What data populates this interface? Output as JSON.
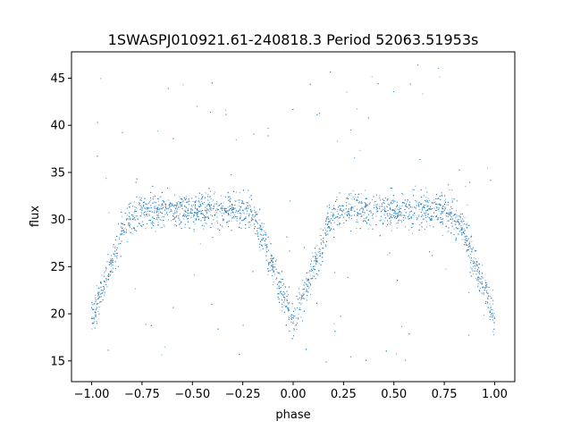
{
  "chart_data": {
    "type": "scatter",
    "title": "1SWASPJ010921.61-240818.3 Period 52063.51953s",
    "xlabel": "phase",
    "ylabel": "flux",
    "xlim": [
      -1.1,
      1.1
    ],
    "ylim": [
      12.8,
      47.8
    ],
    "x_ticks": [
      -1.0,
      -0.75,
      -0.5,
      -0.25,
      0.0,
      0.25,
      0.5,
      0.75,
      1.0
    ],
    "x_tick_labels": [
      "−1.00",
      "−0.75",
      "−0.50",
      "−0.25",
      "0.00",
      "0.25",
      "0.50",
      "0.75",
      "1.00"
    ],
    "y_ticks": [
      15,
      20,
      25,
      30,
      35,
      40,
      45
    ],
    "y_tick_labels": [
      "15",
      "20",
      "25",
      "30",
      "35",
      "40",
      "45"
    ],
    "grid": false,
    "marker_color": "#1f77b4",
    "series": [
      {
        "description_points": "phase-folded light curve, x in [-1, 1]",
        "x": [
          -1.0,
          -0.95,
          -0.9,
          -0.85,
          -0.8,
          -0.75,
          -0.5,
          -0.25,
          -0.2,
          -0.15,
          -0.1,
          -0.05,
          0.0,
          0.05,
          0.1,
          0.15,
          0.2,
          0.25,
          0.5,
          0.75,
          0.8,
          0.85,
          0.9,
          0.95,
          1.0
        ],
        "y": [
          19.5,
          22.5,
          25.5,
          28.5,
          30.5,
          31.0,
          31.0,
          31.0,
          30.5,
          28.0,
          25.0,
          22.0,
          19.0,
          22.0,
          25.0,
          28.0,
          30.5,
          31.0,
          31.0,
          31.0,
          30.5,
          28.5,
          25.5,
          22.5,
          19.5
        ]
      }
    ]
  }
}
